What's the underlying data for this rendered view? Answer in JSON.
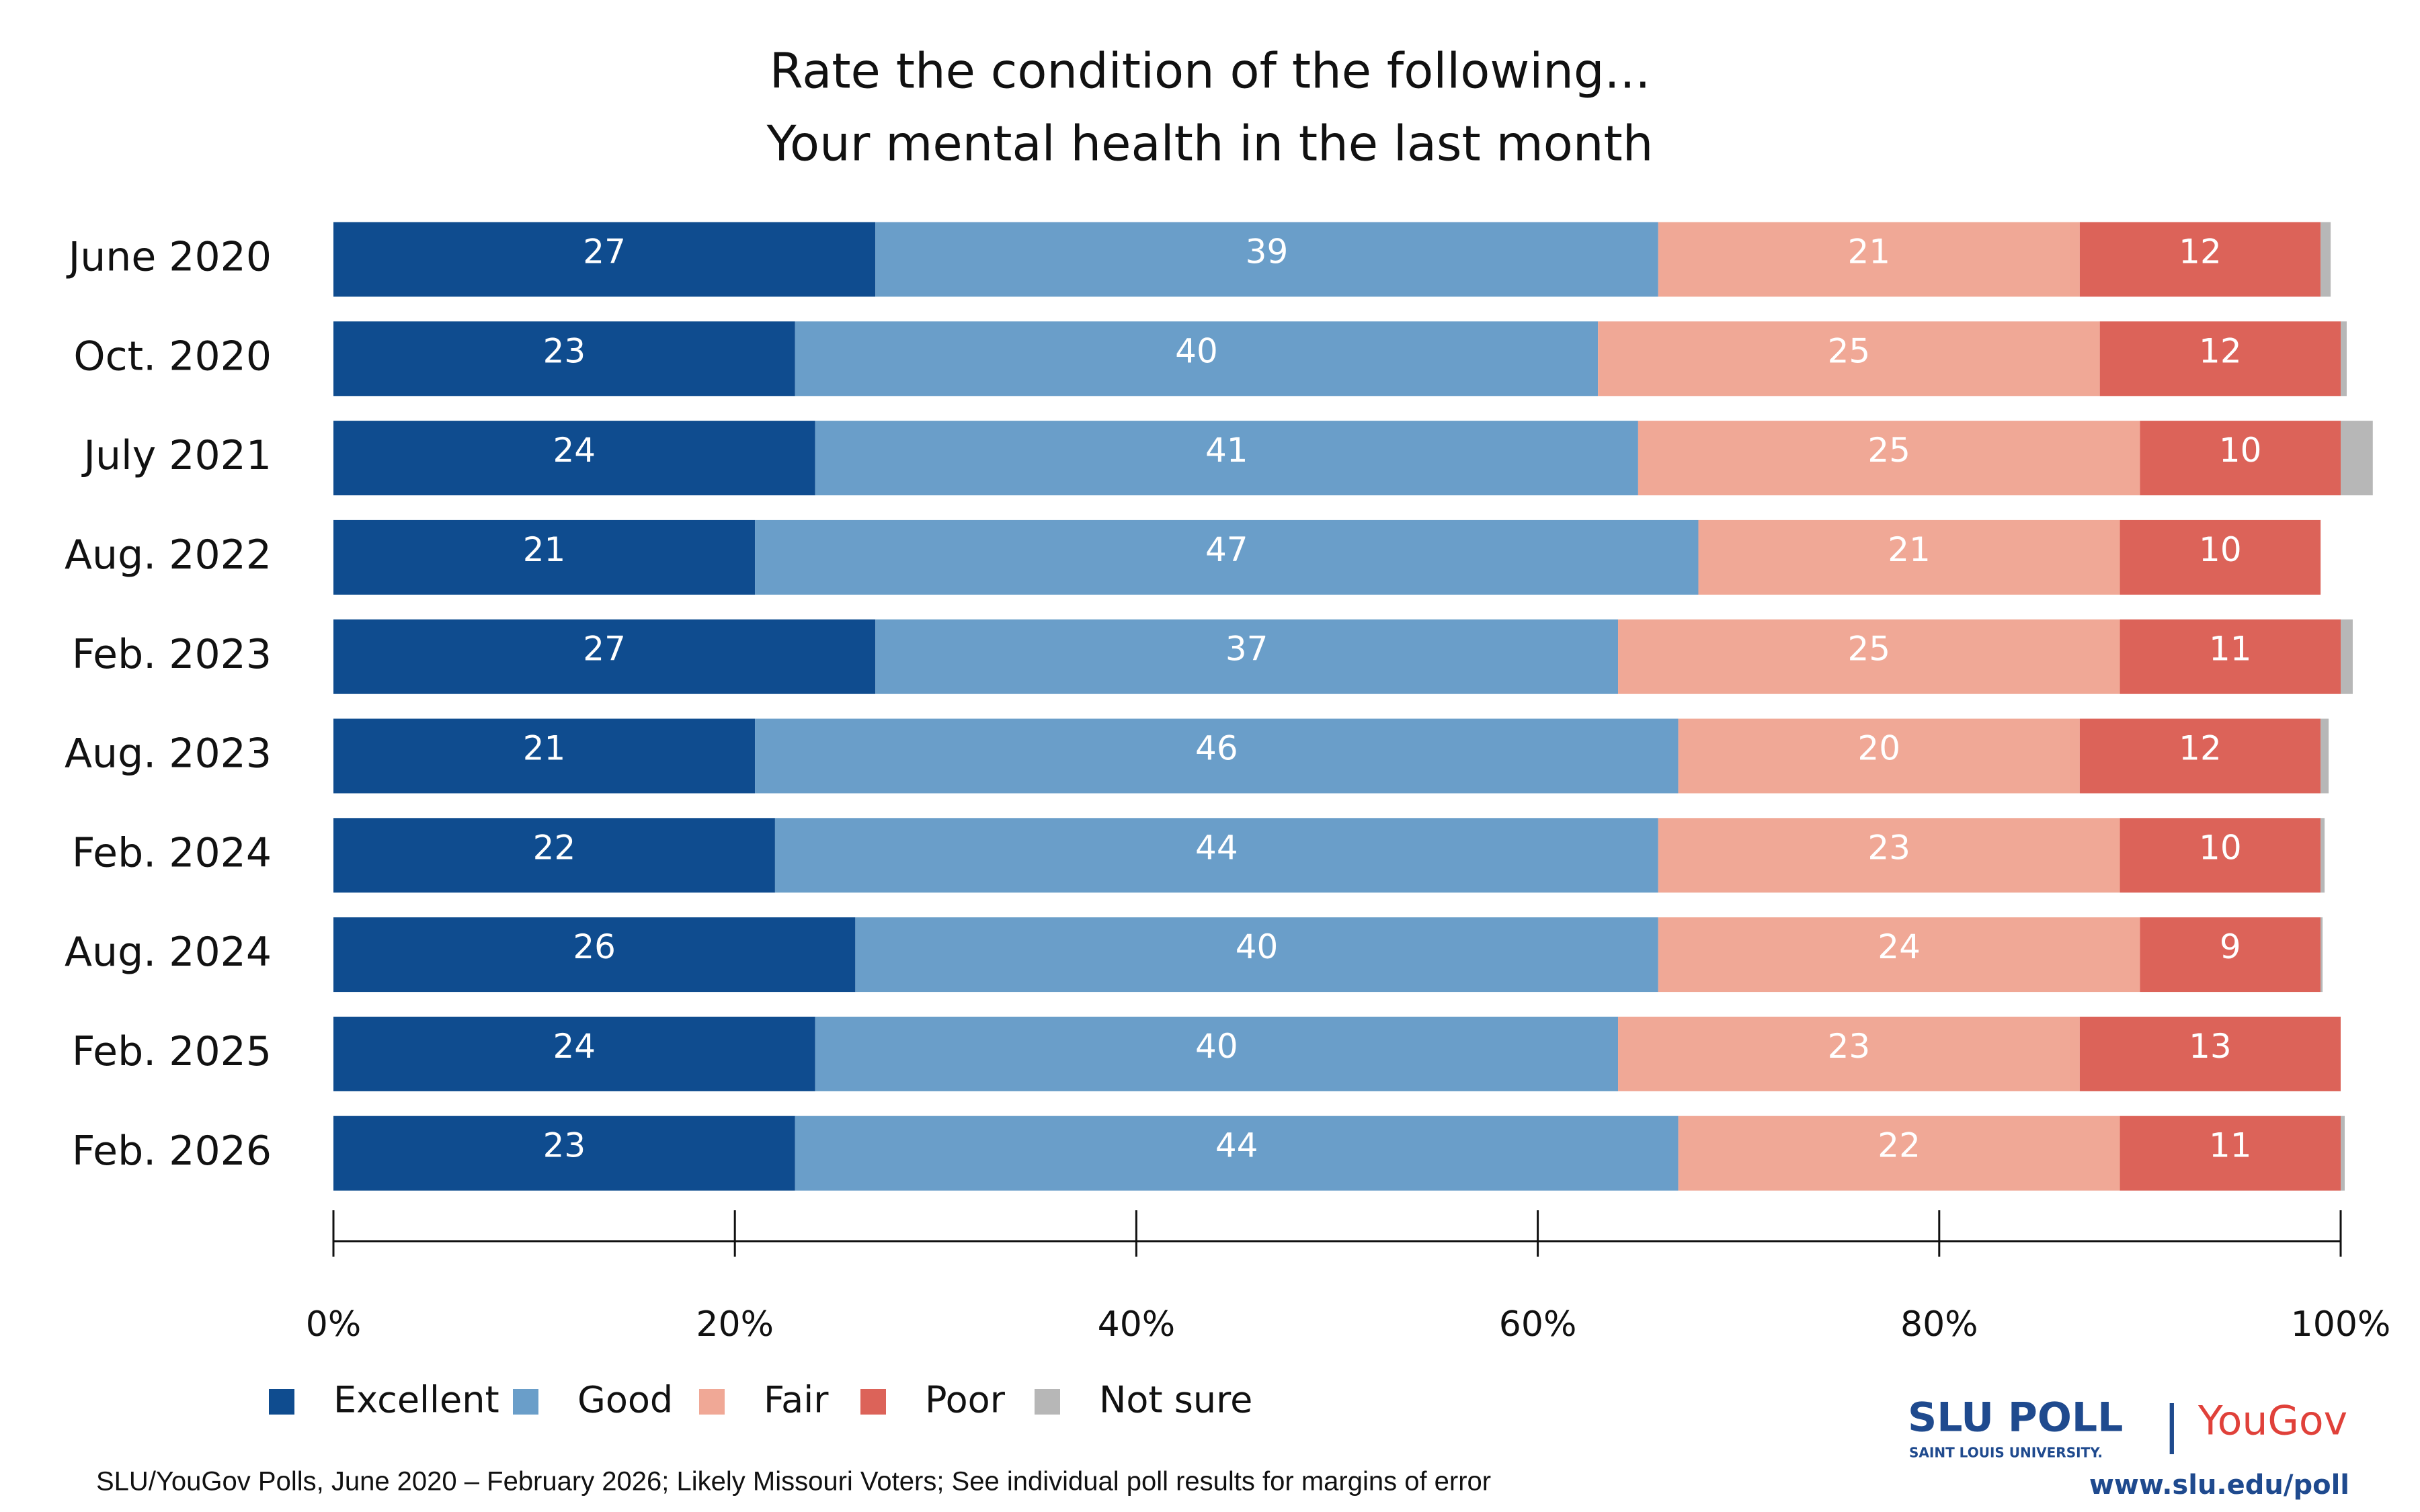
{
  "chart_data": {
    "type": "stacked-bar-horizontal",
    "title": "Rate the condition of the following...",
    "subtitle": "Your mental health in the last month",
    "categories": [
      "June 2020",
      "Oct. 2020",
      "July 2021",
      "Aug. 2022",
      "Feb. 2023",
      "Aug. 2023",
      "Feb. 2024",
      "Aug. 2024",
      "Feb. 2025",
      "Feb. 2026"
    ],
    "series": [
      {
        "name": "Excellent",
        "color": "#0f4c8f",
        "values": [
          27,
          23,
          24,
          21,
          27,
          21,
          22,
          26,
          24,
          23
        ]
      },
      {
        "name": "Good",
        "color": "#6a9ec9",
        "values": [
          39,
          40,
          41,
          47,
          37,
          46,
          44,
          40,
          40,
          44
        ]
      },
      {
        "name": "Fair",
        "color": "#f0a896",
        "values": [
          21,
          25,
          25,
          21,
          25,
          20,
          23,
          24,
          23,
          22
        ]
      },
      {
        "name": "Poor",
        "color": "#dc6359",
        "values": [
          12,
          12,
          10,
          10,
          11,
          12,
          10,
          9,
          13,
          11
        ]
      },
      {
        "name": "Not sure",
        "color": "#b7b7b7",
        "values": [
          0.5,
          0.3,
          1.6,
          0,
          0.6,
          0.4,
          0.2,
          0.1,
          0,
          0.2
        ]
      }
    ],
    "labeled_series": 4,
    "xlim": [
      0,
      100
    ],
    "xticks": [
      {
        "value": 0,
        "label": "0%"
      },
      {
        "value": 20,
        "label": "20%"
      },
      {
        "value": 40,
        "label": "40%"
      },
      {
        "value": 60,
        "label": "60%"
      },
      {
        "value": 80,
        "label": "80%"
      },
      {
        "value": 100,
        "label": "100%"
      }
    ],
    "legend": "bottom-left",
    "footnote": "SLU/YouGov Polls, June 2020 – February 2026; Likely Missouri Voters; See individual poll results for margins of error",
    "branding": {
      "poll": "SLU POLL",
      "university": "SAINT LOUIS UNIVERSITY.",
      "separator": "|",
      "partner": "YouGov",
      "url": "www.slu.edu/poll"
    }
  }
}
